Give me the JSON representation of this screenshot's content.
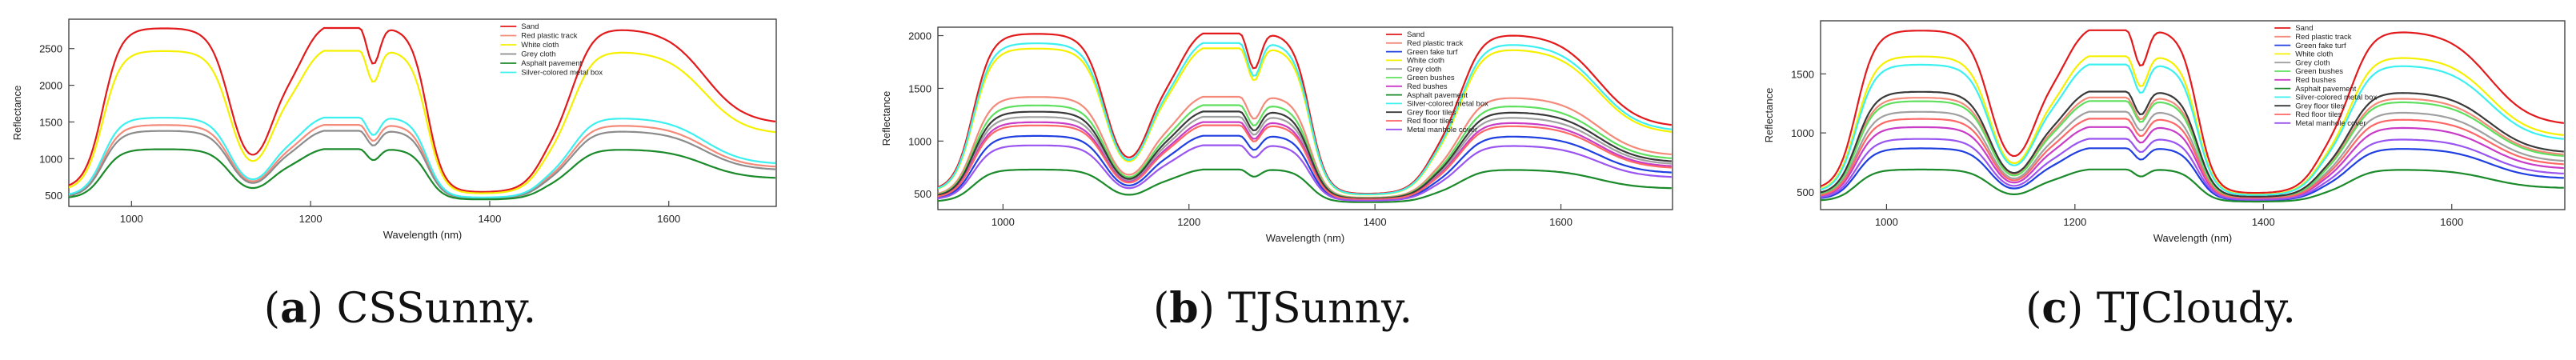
{
  "chart_data": [
    {
      "type": "line",
      "panel": "a",
      "caption_letter": "a",
      "caption_text": "CSSunny.",
      "xlabel": "Wavelength (nm)",
      "ylabel": "Reflectance",
      "xlim": [
        930,
        1720
      ],
      "ylim": [
        350,
        2900
      ],
      "xticks": [
        1000,
        1200,
        1400,
        1600
      ],
      "yticks": [
        500,
        1000,
        1500,
        2000,
        2500
      ],
      "legend_position": "top-right",
      "series": [
        {
          "name": "Sand",
          "color": "#e31a1c",
          "scale": 2780
        },
        {
          "name": "Red plastic track",
          "color": "#f48a7a",
          "scale": 1460
        },
        {
          "name": "White cloth",
          "color": "#f5f000",
          "scale": 2470
        },
        {
          "name": "Grey cloth",
          "color": "#8c8c8c",
          "scale": 1380
        },
        {
          "name": "Asphalt pavement",
          "color": "#1b8a2a",
          "scale": 1130
        },
        {
          "name": "Silver-colored metal box",
          "color": "#3df0f0",
          "scale": 1560
        }
      ]
    },
    {
      "type": "line",
      "panel": "b",
      "caption_letter": "b",
      "caption_text": "TJSunny.",
      "xlabel": "Wavelength (nm)",
      "ylabel": "Reflectance",
      "xlim": [
        930,
        1720
      ],
      "ylim": [
        350,
        2080
      ],
      "xticks": [
        1000,
        1200,
        1400,
        1600
      ],
      "yticks": [
        500,
        1000,
        1500,
        2000
      ],
      "legend_position": "top-right",
      "series": [
        {
          "name": "Sand",
          "color": "#e31a1c",
          "scale": 2020
        },
        {
          "name": "Red plastic track",
          "color": "#f48a7a",
          "scale": 1420
        },
        {
          "name": "Green fake turf",
          "color": "#1f3fe0",
          "scale": 1050
        },
        {
          "name": "White cloth",
          "color": "#f5f000",
          "scale": 1880
        },
        {
          "name": "Grey cloth",
          "color": "#a0a0a0",
          "scale": 1230
        },
        {
          "name": "Green bushes",
          "color": "#5ee05e",
          "scale": 1340
        },
        {
          "name": "Red bushes",
          "color": "#c83cc8",
          "scale": 1180
        },
        {
          "name": "Asphalt pavement",
          "color": "#1b8a2a",
          "scale": 730
        },
        {
          "name": "Silver-colored metal box",
          "color": "#3df0f0",
          "scale": 1930
        },
        {
          "name": "Grey floor tiles",
          "color": "#3a3a3a",
          "scale": 1280
        },
        {
          "name": "Red floor tiles",
          "color": "#ff6666",
          "scale": 1150
        },
        {
          "name": "Metal manhole cover",
          "color": "#9a55f0",
          "scale": 960
        }
      ]
    },
    {
      "type": "line",
      "panel": "c",
      "caption_letter": "c",
      "caption_text": "TJCloudy.",
      "xlabel": "Wavelength (nm)",
      "ylabel": "Reflectance",
      "xlim": [
        930,
        1720
      ],
      "ylim": [
        350,
        1950
      ],
      "xticks": [
        1000,
        1200,
        1400,
        1600
      ],
      "yticks": [
        500,
        1000,
        1500
      ],
      "legend_position": "top-right",
      "series": [
        {
          "name": "Sand",
          "color": "#e31a1c",
          "scale": 1870
        },
        {
          "name": "Red plastic track",
          "color": "#f48a7a",
          "scale": 1300
        },
        {
          "name": "Green fake turf",
          "color": "#1f3fe0",
          "scale": 870
        },
        {
          "name": "White cloth",
          "color": "#f5f000",
          "scale": 1650
        },
        {
          "name": "Grey cloth",
          "color": "#a0a0a0",
          "scale": 1180
        },
        {
          "name": "Green bushes",
          "color": "#5ee05e",
          "scale": 1270
        },
        {
          "name": "Red bushes",
          "color": "#c83cc8",
          "scale": 1050
        },
        {
          "name": "Asphalt pavement",
          "color": "#1b8a2a",
          "scale": 690
        },
        {
          "name": "Silver-colored metal box",
          "color": "#3df0f0",
          "scale": 1580
        },
        {
          "name": "Grey floor tiles",
          "color": "#3a3a3a",
          "scale": 1350
        },
        {
          "name": "Red floor tiles",
          "color": "#ff6666",
          "scale": 1120
        },
        {
          "name": "Metal manhole cover",
          "color": "#9a55f0",
          "scale": 950
        }
      ]
    }
  ]
}
